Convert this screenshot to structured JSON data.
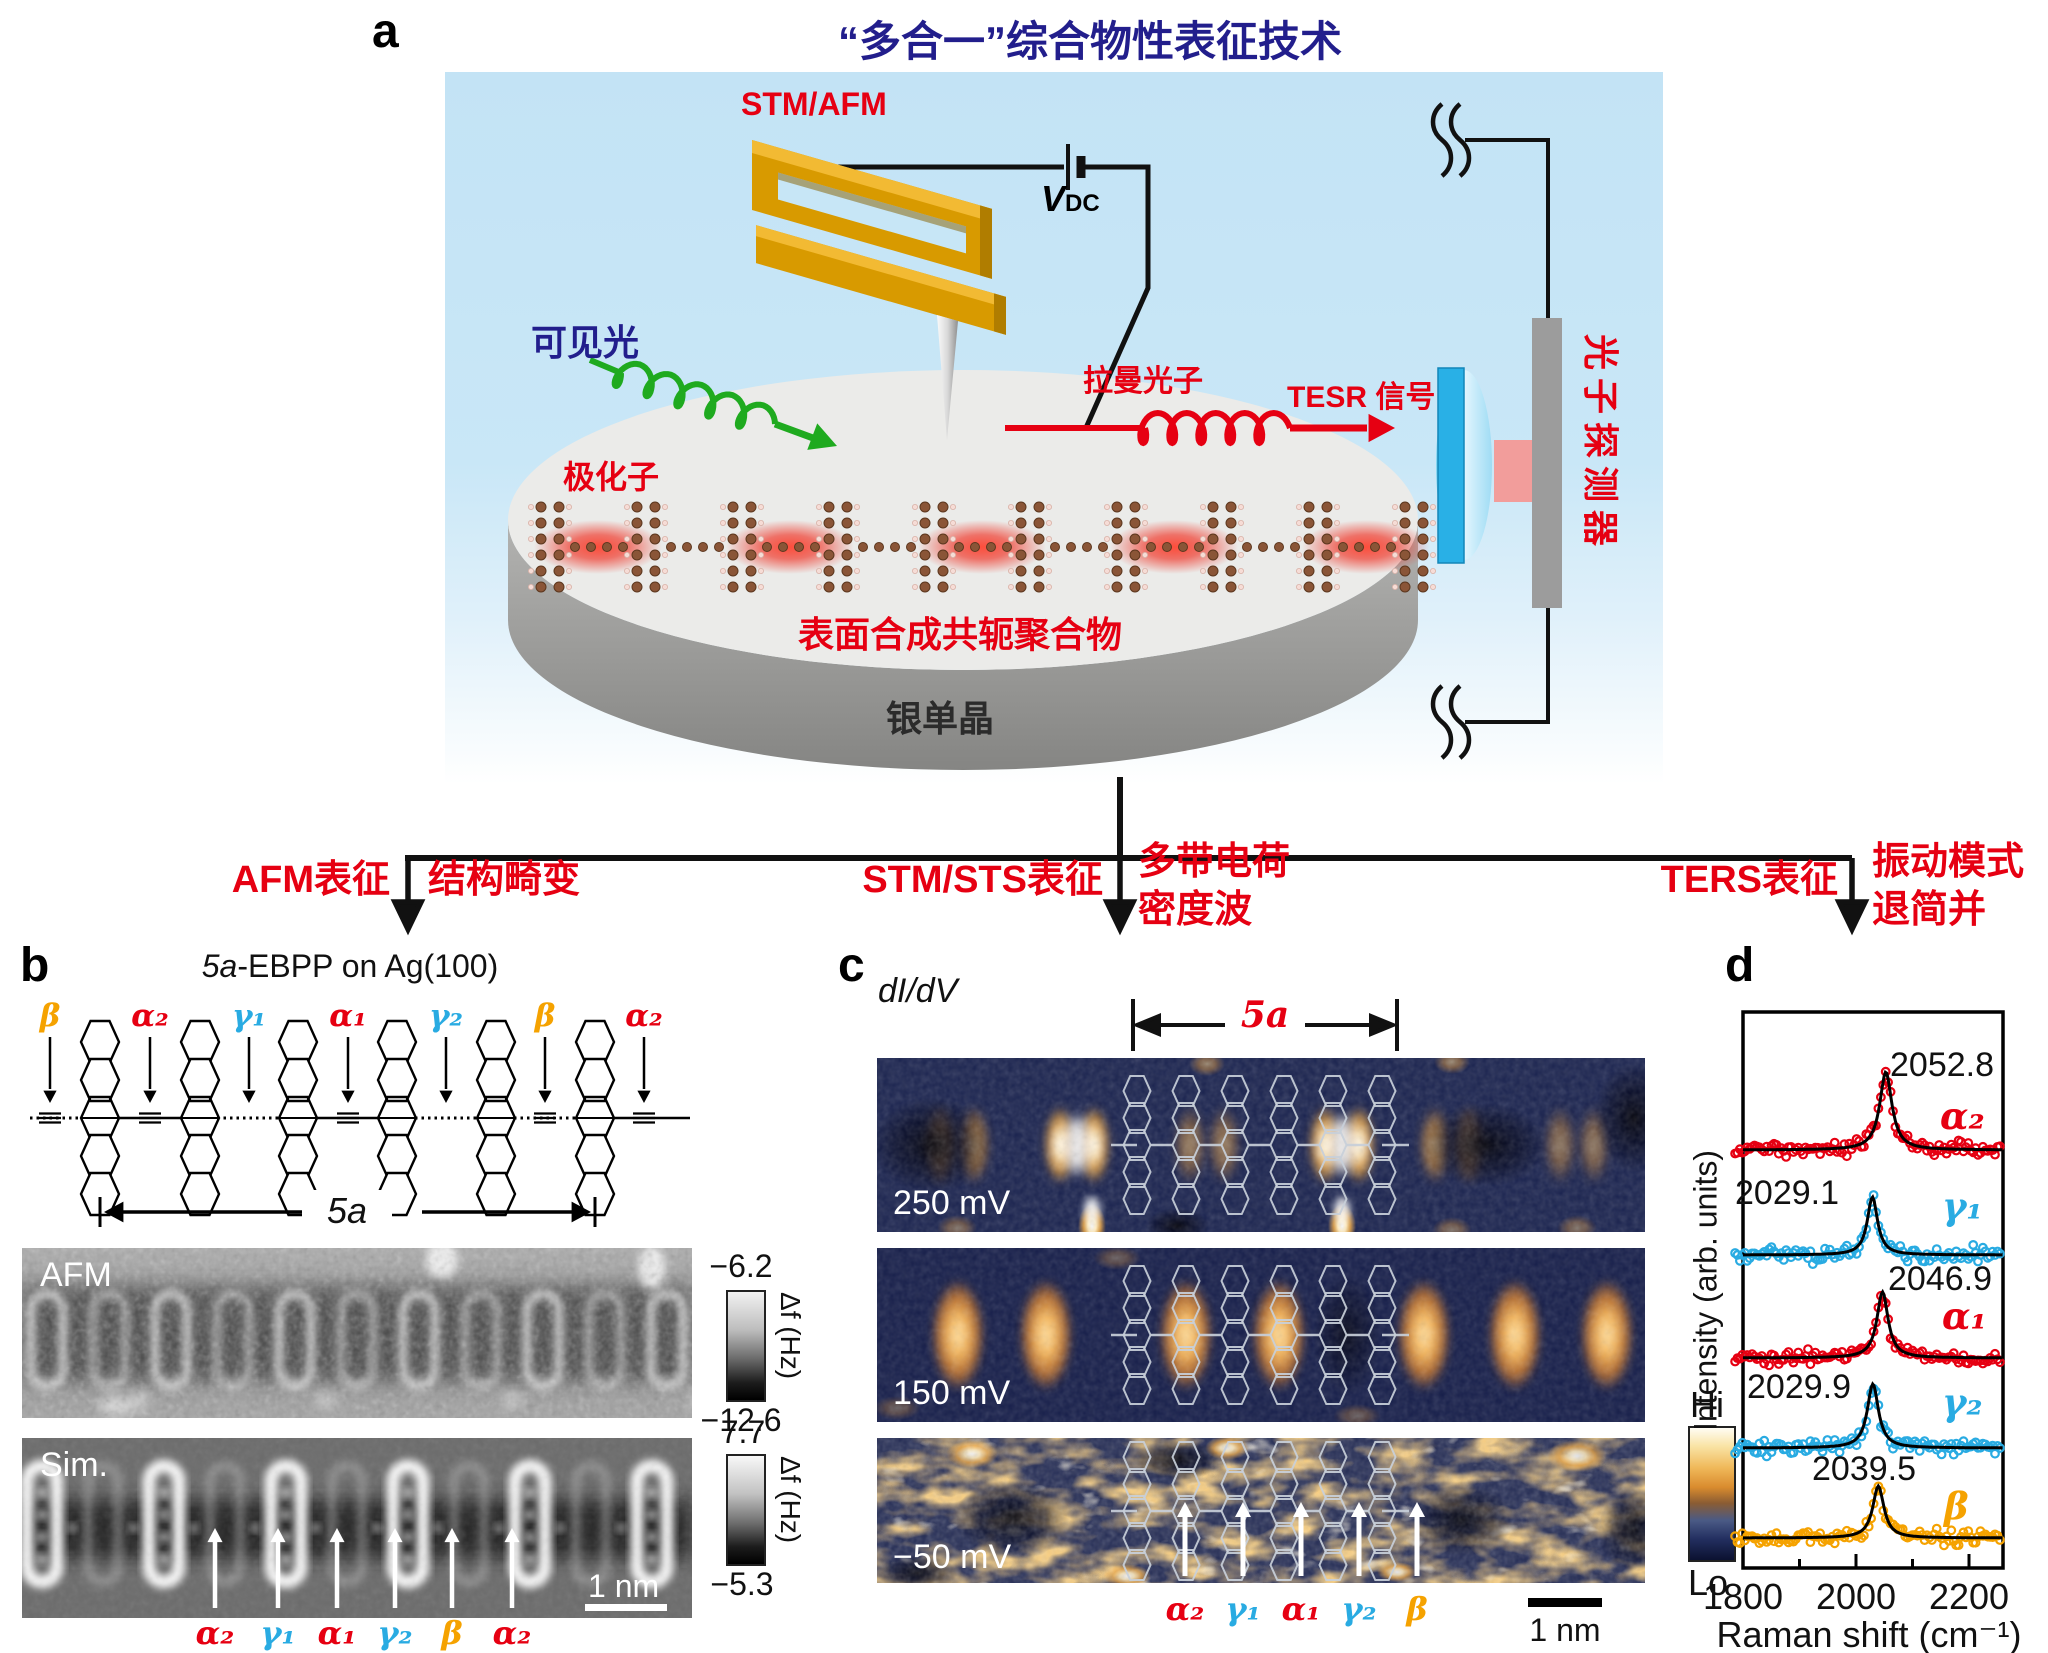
{
  "figure_title": "“多合一”综合物性表征技术",
  "panels": {
    "a": {
      "label": "a",
      "stm_afm": "STM/AFM",
      "vdc_symbol": "V",
      "vdc_subscript": "DC",
      "visible_light": "可见光",
      "polaron": "极化子",
      "raman_photon": "拉曼光子",
      "tesr_signal": "TESR 信号",
      "photon_detector": "光子探测器",
      "polymer": "表面合成共轭聚合物",
      "substrate": "银单晶"
    },
    "b": {
      "label": "b",
      "title_italic": "5a",
      "title_rest": "-EBPP on Ag(100)",
      "bond_labels": [
        {
          "text": "β",
          "color": "#f5a200"
        },
        {
          "text": "α₂",
          "color": "#e60012"
        },
        {
          "text": "γ₁",
          "color": "#29abe2"
        },
        {
          "text": "α₁",
          "color": "#e60012"
        },
        {
          "text": "γ₂",
          "color": "#29abe2"
        },
        {
          "text": "β",
          "color": "#f5a200"
        },
        {
          "text": "α₂",
          "color": "#e60012"
        }
      ],
      "span_label": "5a",
      "afm_label": "AFM",
      "sim_label": "Sim.",
      "afm_scale_max": "−6.2",
      "afm_scale_min": "−12.6",
      "afm_scale_unit": "Δf (Hz)",
      "sim_scale_max": "7.7",
      "sim_scale_min": "−5.3",
      "sim_scale_unit": "Δf (Hz)",
      "scalebar": "1 nm",
      "arrow_labels": [
        {
          "text": "α₂",
          "color": "#e60012"
        },
        {
          "text": "γ₁",
          "color": "#29abe2"
        },
        {
          "text": "α₁",
          "color": "#e60012"
        },
        {
          "text": "γ₂",
          "color": "#29abe2"
        },
        {
          "text": "β",
          "color": "#f5a200"
        },
        {
          "text": "α₂",
          "color": "#e60012"
        }
      ]
    },
    "c": {
      "label": "c",
      "map_type": "dI/dV",
      "span_label": "5a",
      "bias_labels": [
        "250 mV",
        "150 mV",
        "−50 mV"
      ],
      "scale_hi": "Hi",
      "scale_lo": "Lo",
      "scalebar": "1 nm",
      "arrow_labels": [
        {
          "text": "α₂",
          "color": "#e60012"
        },
        {
          "text": "γ₁",
          "color": "#29abe2"
        },
        {
          "text": "α₁",
          "color": "#e60012"
        },
        {
          "text": "γ₂",
          "color": "#29abe2"
        },
        {
          "text": "β",
          "color": "#f5a200"
        }
      ]
    },
    "d": {
      "label": "d"
    }
  },
  "branches": [
    {
      "technique": "AFM表征",
      "result_line1": "结构畸变",
      "result_line2": ""
    },
    {
      "technique": "STM/STS表征",
      "result_line1": "多带电荷",
      "result_line2": "密度波"
    },
    {
      "technique": "TERS表征",
      "result_line1": "振动模式",
      "result_line2": "退简并"
    }
  ],
  "chart_data": {
    "type": "scatter",
    "xlabel": "Raman shift (cm⁻¹)",
    "ylabel": "Intensity (arb. units)",
    "x_ticks": [
      "1800",
      "2000",
      "2200"
    ],
    "x_range": [
      1800,
      2260
    ],
    "grid": false,
    "stacked_order_top_to_bottom": [
      "α₂",
      "γ₁",
      "α₁",
      "γ₂",
      "β"
    ],
    "fit_color": "#000000",
    "series": [
      {
        "name": "α₂",
        "color": "#e60012",
        "peak_cm1": 2052.8,
        "peak_label": "2052.8",
        "fit": "Lorentzian"
      },
      {
        "name": "γ₁",
        "color": "#29abe2",
        "peak_cm1": 2029.1,
        "peak_label": "2029.1",
        "fit": "Lorentzian"
      },
      {
        "name": "α₁",
        "color": "#e60012",
        "peak_cm1": 2046.9,
        "peak_label": "2046.9",
        "fit": "Lorentzian"
      },
      {
        "name": "γ₂",
        "color": "#29abe2",
        "peak_cm1": 2029.9,
        "peak_label": "2029.9",
        "fit": "Lorentzian"
      },
      {
        "name": "β",
        "color": "#f5a200",
        "peak_cm1": 2039.5,
        "peak_label": "2039.5",
        "fit": "Lorentzian"
      }
    ]
  }
}
